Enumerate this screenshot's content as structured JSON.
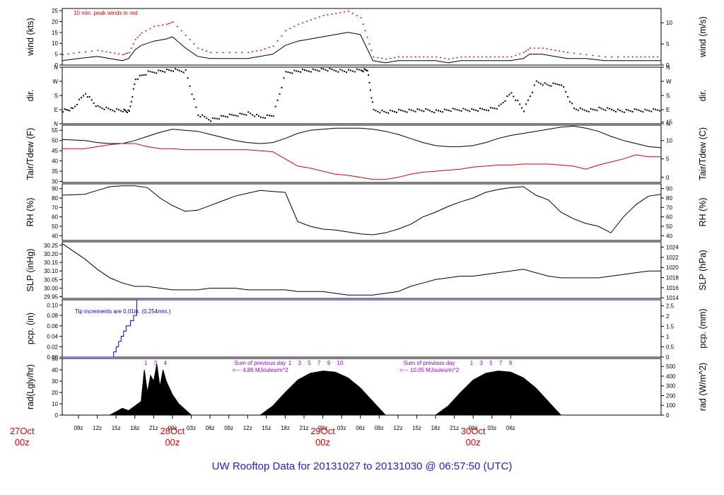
{
  "title": "UW Rooftop Data for 20131027  to  20131030 @ 06:57:50  (UTC)",
  "colors": {
    "trace": "#000000",
    "secondary": "#e00000",
    "precip": "#0000cc",
    "annotation": "#9900cc",
    "title": "#1f1fcf"
  },
  "time_axis": {
    "start_label": "27Oct",
    "start_sub": "00z",
    "hour_labels": [
      "09z",
      "12z",
      "15z",
      "18z",
      "21z",
      "00z",
      "03z",
      "06z",
      "09z",
      "12z",
      "15z",
      "18z",
      "21z",
      "00z",
      "03z",
      "06z",
      "09z",
      "12z",
      "15z",
      "18z",
      "21z",
      "00z",
      "03z",
      "06z"
    ],
    "day_labels": [
      {
        "date": "28Oct",
        "hour": "00z"
      },
      {
        "date": "29Oct",
        "hour": "00z"
      },
      {
        "date": "30Oct",
        "hour": "00z"
      }
    ]
  },
  "panels": {
    "wind": {
      "left_label": "wind (kts)",
      "right_label": "wind (m/s)",
      "left_ticks": [
        "0",
        "5",
        "10",
        "15",
        "20",
        "25"
      ],
      "right_ticks": [
        "0",
        "5",
        "10"
      ],
      "note": "10 min. peak winds in red"
    },
    "dir": {
      "left_label": "dir.",
      "right_label": "dir.",
      "ticks": [
        "N",
        "E",
        "S",
        "W",
        "N"
      ]
    },
    "temp": {
      "left_label": "Tair/Tdew (F)",
      "right_label": "Tair/Tdew (C)",
      "left_ticks": [
        "30",
        "35",
        "40",
        "45",
        "50",
        "55"
      ],
      "right_ticks": [
        "0",
        "5",
        "10",
        "15"
      ]
    },
    "rh": {
      "left_label": "RH (%)",
      "right_label": "RH (%)",
      "left_ticks": [
        "40",
        "50",
        "60",
        "70",
        "80",
        "90"
      ],
      "right_ticks": [
        "40",
        "50",
        "60",
        "70",
        "80",
        "90"
      ]
    },
    "slp": {
      "left_label": "SLP (inHg)",
      "right_label": "SLP (hPa)",
      "left_ticks": [
        "29.95",
        "30.00",
        "30.05",
        "30.10",
        "30.15",
        "30.20",
        "30.25"
      ],
      "right_ticks": [
        "1014",
        "1016",
        "1018",
        "1020",
        "1022",
        "1024"
      ]
    },
    "pcp": {
      "left_label": "pcp. (in)",
      "right_label": "pcp. (mm)",
      "left_ticks": [
        "0.00",
        "0.02",
        "0.04",
        "0.06",
        "0.08",
        "0.10"
      ],
      "right_ticks": [
        "0",
        "0.5",
        "1",
        "1.5",
        "2",
        "2.5"
      ],
      "note": "Tip increments are 0.01in. (0.254mm.)"
    },
    "rad": {
      "left_label": "rad(Lgly/hr)",
      "right_label": "rad (W/m^2)",
      "left_ticks": [
        "0",
        "10",
        "20",
        "30",
        "40",
        "50"
      ],
      "right_ticks": [
        "0",
        "100",
        "200",
        "300",
        "400",
        "500"
      ],
      "annotations": [
        {
          "line1": "Sum of previous day",
          "line2": "<--- 4.86 MJoules/m^2"
        },
        {
          "line1": "Sum of previous day",
          "line2": "<--- 10.05 MJoules/m^2"
        }
      ],
      "hour_marks": [
        [
          "1",
          "3",
          "4"
        ],
        [
          "1",
          "3",
          "5",
          "7",
          "9",
          "10"
        ],
        [
          "1",
          "3",
          "5",
          "7",
          "9"
        ]
      ]
    }
  },
  "chart_data": {
    "type": "line",
    "x_unit": "hours UTC since 27Oct 00z",
    "x_range": [
      6.4,
      102
    ],
    "series": [
      {
        "name": "wind",
        "unit": "kts",
        "ylim": [
          0,
          26
        ],
        "x": [
          6.4,
          9,
          12,
          14,
          16,
          17,
          18,
          19,
          21,
          23,
          24,
          26,
          28,
          30,
          33,
          36,
          38,
          40,
          42,
          44,
          46,
          48,
          50,
          52,
          54,
          55,
          56,
          58,
          60,
          62,
          64,
          66,
          68,
          70,
          72,
          74,
          76,
          78,
          80,
          81,
          83,
          85,
          87,
          90,
          93,
          96,
          98,
          100,
          102
        ],
        "values": [
          2,
          3,
          4,
          3,
          2,
          3,
          7,
          9,
          11,
          12,
          13,
          8,
          4,
          3,
          3,
          3,
          4,
          5,
          9,
          11,
          12,
          13,
          14,
          15,
          14,
          8,
          2,
          1,
          2,
          2,
          2,
          2,
          1,
          2,
          2,
          2,
          2,
          2,
          3,
          5,
          5,
          4,
          3,
          3,
          2,
          2,
          2,
          2,
          2
        ]
      },
      {
        "name": "peak wind",
        "unit": "kts",
        "ylim": [
          0,
          26
        ],
        "x": [
          6.4,
          9,
          12,
          14,
          16,
          17,
          18,
          19,
          21,
          23,
          24,
          26,
          28,
          30,
          33,
          36,
          38,
          40,
          42,
          44,
          46,
          48,
          50,
          52,
          54,
          55,
          56,
          58,
          60,
          62,
          64,
          66,
          68,
          70,
          72,
          74,
          76,
          78,
          80,
          81,
          83,
          85,
          87,
          90,
          93,
          96,
          98,
          100,
          102
        ],
        "values": [
          5,
          6,
          7,
          6,
          5,
          6,
          12,
          15,
          18,
          19,
          20,
          14,
          8,
          6,
          6,
          6,
          7,
          9,
          16,
          19,
          21,
          23,
          24,
          25,
          22,
          13,
          4,
          3,
          4,
          4,
          4,
          4,
          3,
          4,
          4,
          4,
          4,
          4,
          6,
          8,
          8,
          7,
          6,
          5,
          4,
          4,
          4,
          4,
          4
        ]
      },
      {
        "name": "dir",
        "unit": "deg",
        "ylim": [
          0,
          360
        ],
        "x": [
          6.4,
          8,
          10,
          12,
          14,
          16,
          17,
          18,
          20,
          22,
          24,
          26,
          28,
          30,
          32,
          34,
          36,
          38,
          40,
          42,
          44,
          46,
          48,
          50,
          52,
          54,
          55,
          56,
          58,
          60,
          62,
          64,
          66,
          68,
          70,
          72,
          74,
          76,
          78,
          80,
          82,
          84,
          86,
          88,
          90,
          92,
          94,
          96,
          98,
          100,
          102
        ],
        "values": [
          90,
          100,
          200,
          110,
          95,
          90,
          80,
          290,
          330,
          340,
          345,
          340,
          60,
          30,
          50,
          60,
          70,
          45,
          60,
          330,
          340,
          345,
          350,
          345,
          340,
          345,
          350,
          90,
          80,
          85,
          90,
          90,
          85,
          90,
          95,
          90,
          95,
          110,
          200,
          90,
          270,
          250,
          260,
          100,
          90,
          100,
          95,
          85,
          90,
          90,
          95
        ]
      },
      {
        "name": "Tair",
        "unit": "F",
        "ylim": [
          29.5,
          57.5
        ],
        "x": [
          6.4,
          10,
          12,
          14,
          16,
          18,
          20,
          22,
          24,
          26,
          28,
          30,
          32,
          34,
          36,
          38,
          40,
          42,
          44,
          46,
          48,
          50,
          52,
          54,
          56,
          58,
          60,
          62,
          64,
          66,
          68,
          70,
          72,
          74,
          76,
          78,
          80,
          82,
          84,
          86,
          88,
          90,
          92,
          94,
          96,
          98,
          100,
          102
        ],
        "values": [
          50.5,
          50,
          49,
          48.5,
          48.5,
          50,
          52,
          54,
          55.5,
          55,
          54.5,
          53,
          51.5,
          50,
          49,
          48.5,
          49,
          51,
          53.5,
          55,
          55.5,
          56,
          56,
          56,
          55.5,
          54.5,
          53,
          51,
          49,
          47.5,
          47,
          47,
          47.5,
          49,
          51,
          52.5,
          53.5,
          54.5,
          55.5,
          56.5,
          57,
          56,
          54.5,
          52,
          50,
          48.5,
          47,
          46.5
        ]
      },
      {
        "name": "Tdew",
        "unit": "F",
        "ylim": [
          29.5,
          57.5
        ],
        "x": [
          6.4,
          10,
          12,
          14,
          16,
          18,
          20,
          22,
          24,
          26,
          28,
          30,
          32,
          34,
          36,
          38,
          40,
          42,
          44,
          46,
          48,
          50,
          52,
          54,
          56,
          58,
          60,
          62,
          64,
          66,
          68,
          70,
          72,
          74,
          76,
          78,
          80,
          82,
          84,
          86,
          88,
          90,
          92,
          94,
          96,
          98,
          100,
          102
        ],
        "values": [
          46,
          46,
          47,
          48,
          48.5,
          48.5,
          47,
          46,
          46,
          45.5,
          45.5,
          45.5,
          45.5,
          45.5,
          45.5,
          45,
          44.5,
          41,
          37.5,
          36.5,
          35,
          33.5,
          33,
          32,
          31,
          31,
          32,
          33.5,
          34.5,
          35,
          35.5,
          36,
          37,
          37.5,
          38,
          38,
          38.5,
          38.5,
          38.5,
          38,
          37.5,
          36,
          38,
          39.5,
          41,
          43,
          42,
          42
        ]
      },
      {
        "name": "RH",
        "unit": "%",
        "ylim": [
          35,
          95
        ],
        "x": [
          6.4,
          10,
          12,
          14,
          16,
          18,
          20,
          22,
          24,
          26,
          28,
          30,
          32,
          34,
          36,
          38,
          40,
          42,
          44,
          46,
          48,
          50,
          52,
          54,
          56,
          58,
          60,
          62,
          64,
          66,
          68,
          70,
          72,
          74,
          76,
          78,
          80,
          82,
          84,
          86,
          88,
          90,
          92,
          94,
          96,
          98,
          100,
          102
        ],
        "values": [
          83,
          84,
          88,
          92,
          93,
          93,
          91,
          80,
          72,
          66,
          67,
          72,
          77,
          82,
          85,
          88,
          87,
          86,
          55,
          50,
          47,
          46,
          44,
          42,
          41,
          43,
          47,
          52,
          60,
          65,
          71,
          76,
          80,
          86,
          89,
          91,
          92,
          83,
          78,
          65,
          58,
          53,
          50,
          43,
          60,
          73,
          82,
          84
        ]
      },
      {
        "name": "SLP",
        "unit": "inHg",
        "ylim": [
          29.94,
          30.27
        ],
        "x": [
          6.4,
          8,
          10,
          12,
          14,
          16,
          18,
          20,
          22,
          24,
          26,
          28,
          30,
          32,
          34,
          36,
          38,
          40,
          42,
          44,
          46,
          48,
          50,
          52,
          54,
          56,
          58,
          60,
          62,
          64,
          66,
          68,
          70,
          72,
          74,
          76,
          78,
          80,
          82,
          84,
          86,
          88,
          90,
          92,
          94,
          96,
          98,
          100,
          102
        ],
        "values": [
          30.26,
          30.22,
          30.17,
          30.11,
          30.06,
          30.03,
          30.01,
          30.01,
          30.0,
          29.99,
          29.99,
          29.99,
          30.0,
          30.0,
          30.0,
          29.99,
          29.99,
          29.99,
          29.99,
          29.98,
          29.98,
          29.98,
          29.97,
          29.96,
          29.96,
          29.96,
          29.97,
          29.98,
          30.01,
          30.03,
          30.05,
          30.06,
          30.07,
          30.07,
          30.08,
          30.09,
          30.1,
          30.11,
          30.09,
          30.07,
          30.06,
          30.06,
          30.06,
          30.06,
          30.07,
          30.08,
          30.09,
          30.1,
          30.1
        ]
      },
      {
        "name": "pcp",
        "unit": "in",
        "ylim": [
          0,
          0.11
        ],
        "x": [
          6.4,
          14,
          14.6,
          15,
          15.4,
          15.8,
          16.2,
          16.6,
          17.3,
          17.8,
          18.3
        ],
        "values": [
          0,
          0,
          0.01,
          0.02,
          0.03,
          0.04,
          0.05,
          0.06,
          0.07,
          0.08,
          0.11
        ]
      },
      {
        "name": "rad",
        "unit": "Lgly/hr",
        "ylim": [
          0,
          50
        ],
        "x": [
          6.4,
          14,
          15,
          16,
          17,
          18,
          19,
          19.5,
          20,
          20.5,
          21,
          21.5,
          22,
          22.5,
          23,
          24,
          25,
          26,
          27,
          38,
          40,
          42,
          44,
          46,
          48,
          50,
          52,
          54,
          56,
          58,
          66,
          68,
          70,
          72,
          74,
          76,
          78,
          80,
          82,
          84,
          86,
          88,
          102
        ],
        "values": [
          0,
          0,
          3,
          6,
          4,
          8,
          12,
          40,
          20,
          35,
          30,
          45,
          25,
          40,
          30,
          18,
          10,
          5,
          0,
          0,
          8,
          20,
          31,
          37,
          39,
          38,
          33,
          24,
          12,
          0,
          0,
          8,
          20,
          31,
          37,
          39,
          38,
          33,
          24,
          12,
          0,
          0,
          0
        ]
      }
    ]
  }
}
